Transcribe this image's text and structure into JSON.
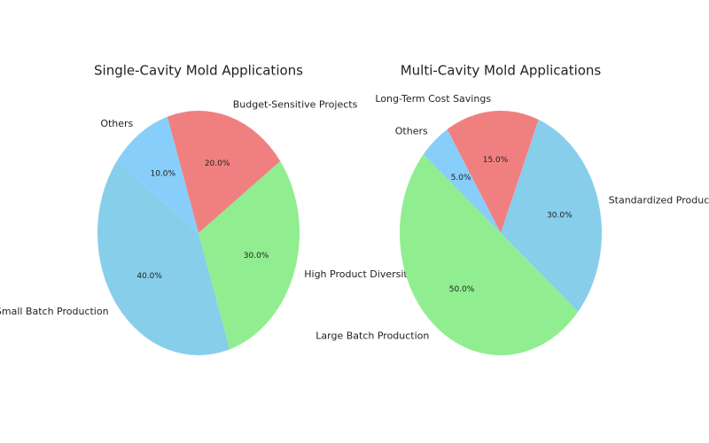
{
  "chart_data": [
    {
      "type": "pie",
      "title": "Single-Cavity Mold Applications",
      "categories": [
        "Small Batch Production",
        "High Product Diversity",
        "Budget-Sensitive Projects",
        "Others"
      ],
      "values": [
        40,
        30,
        20,
        10
      ],
      "value_labels": [
        "40.0%",
        "30.0%",
        "20.0%",
        "10.0%"
      ],
      "colors": [
        "#87ceeb",
        "#90ee90",
        "#f08080",
        "#87cefa"
      ]
    },
    {
      "type": "pie",
      "title": "Multi-Cavity Mold Applications",
      "categories": [
        "Large Batch Production",
        "Standardized Products",
        "Long-Term Cost Savings",
        "Others"
      ],
      "values": [
        50,
        30,
        15,
        5
      ],
      "value_labels": [
        "50.0%",
        "30.0%",
        "15.0%",
        "5.0%"
      ],
      "colors": [
        "#90ee90",
        "#87ceeb",
        "#f08080",
        "#87cefa"
      ]
    }
  ]
}
